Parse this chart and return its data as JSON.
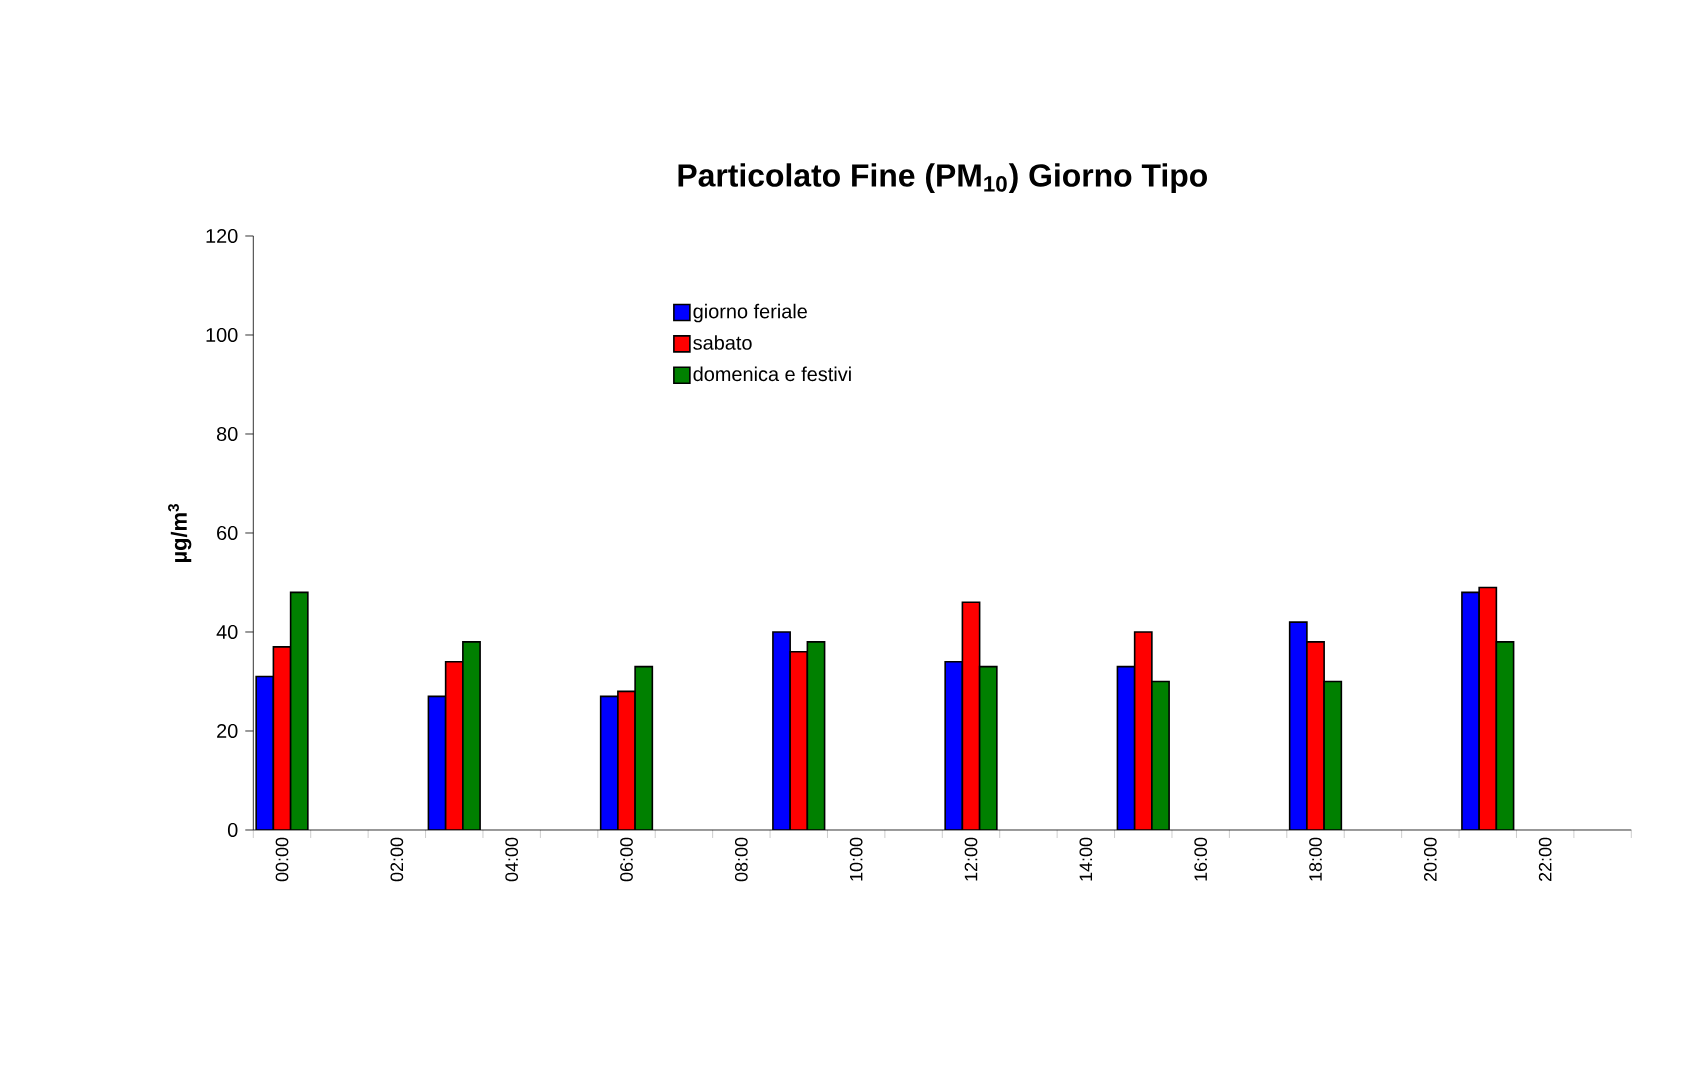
{
  "chart_data": {
    "type": "bar",
    "title": "Particolato Fine (PM$_{10}$) Giorno Tipo",
    "ylabel": "µg/m$^{3}$",
    "categories": [
      "00:00",
      null,
      "02:00",
      null,
      "04:00",
      null,
      "06:00",
      null,
      "08:00",
      null,
      "10:00",
      null,
      "12:00",
      null,
      "14:00",
      null,
      "16:00",
      null,
      "18:00",
      null,
      "20:00",
      null,
      "22:00",
      null
    ],
    "series": [
      {
        "name": "giorno feriale",
        "color": "#0000ff",
        "values": [
          31,
          null,
          null,
          27,
          null,
          null,
          27,
          null,
          null,
          40,
          null,
          null,
          34,
          null,
          null,
          33,
          null,
          null,
          42,
          null,
          null,
          48,
          null,
          null
        ]
      },
      {
        "name": "sabato",
        "color": "#ff0000",
        "values": [
          37,
          null,
          null,
          34,
          null,
          null,
          28,
          null,
          null,
          36,
          null,
          null,
          46,
          null,
          null,
          40,
          null,
          null,
          38,
          null,
          null,
          49,
          null,
          null
        ]
      },
      {
        "name": "domenica e festivi",
        "color": "#008000",
        "values": [
          48,
          null,
          null,
          38,
          null,
          null,
          33,
          null,
          null,
          38,
          null,
          null,
          33,
          null,
          null,
          30,
          null,
          null,
          30,
          null,
          null,
          38,
          null,
          null
        ]
      }
    ],
    "ylim": [
      0,
      120
    ],
    "yticks": [
      0,
      20,
      40,
      60,
      80,
      100,
      120
    ],
    "grid": false,
    "legend": "top left"
  }
}
